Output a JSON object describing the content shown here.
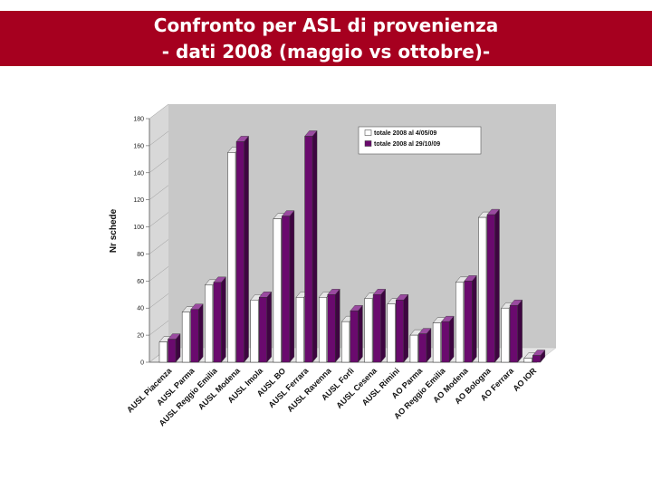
{
  "slide": {
    "title_line1": "Confronto per ASL di provenienza",
    "title_line2": "- dati 2008 (maggio vs ottobre)-"
  },
  "colors": {
    "header_bg": "#a6001f",
    "series1": "#ffffff",
    "series2": "#6a0a6e",
    "wall": "#c8c8c8"
  },
  "chart_data": {
    "type": "bar",
    "ylabel": "Nr schede",
    "xlabel": "",
    "ylim": [
      0,
      180
    ],
    "yticks": [
      0,
      20,
      40,
      60,
      80,
      100,
      120,
      140,
      160,
      180
    ],
    "legend_position": "top-right",
    "categories": [
      "AUSL Piacenza",
      "AUSL Parma",
      "AUSL Reggio Emilia",
      "AUSL Modena",
      "AUSL Imola",
      "AUSL BO",
      "AUSL Ferrara",
      "AUSL Ravenna",
      "AUSL Forlì",
      "AUSL Cesena",
      "AUSL Rimini",
      "AO Parma",
      "AO Reggio Emilia",
      "AO Modena",
      "AO Bologna",
      "AO Ferrara",
      "AO IOR"
    ],
    "series": [
      {
        "name": "totale 2008 al 4/05/09",
        "values": [
          15,
          37,
          57,
          155,
          46,
          106,
          48,
          48,
          30,
          47,
          43,
          20,
          29,
          59,
          107,
          40,
          3
        ]
      },
      {
        "name": "totale 2008 al 29/10/09",
        "values": [
          17,
          39,
          59,
          163,
          48,
          108,
          167,
          50,
          38,
          50,
          46,
          21,
          30,
          60,
          109,
          42,
          5
        ]
      }
    ]
  }
}
